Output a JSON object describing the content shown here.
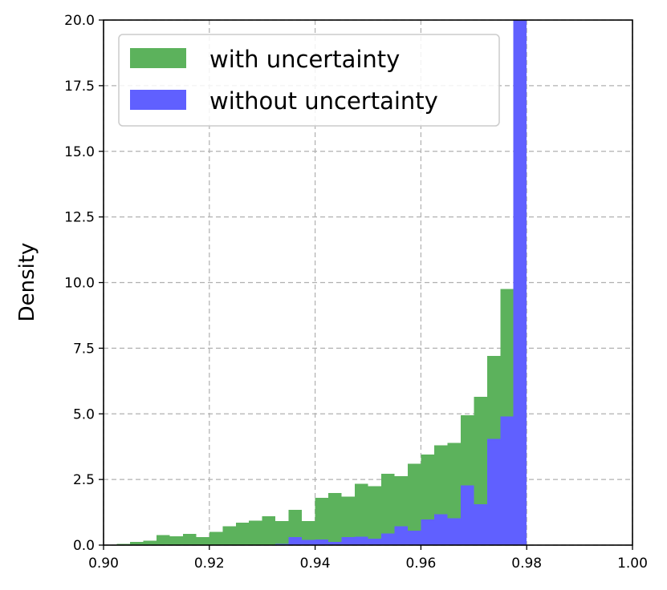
{
  "chart_data": {
    "type": "bar",
    "subtype": "histogram-overlay",
    "xlabel": "",
    "ylabel": "Density",
    "xlim": [
      0.9,
      1.0
    ],
    "ylim": [
      0,
      20
    ],
    "xticks": [
      0.9,
      0.92,
      0.94,
      0.96,
      0.98,
      1.0
    ],
    "xtick_labels": [
      "0.90",
      "0.92",
      "0.94",
      "0.96",
      "0.98",
      "1.00"
    ],
    "yticks": [
      0,
      2.5,
      5,
      7.5,
      10,
      12.5,
      15,
      17.5,
      20
    ],
    "ytick_labels": [
      "0.0",
      "2.5",
      "5.0",
      "7.5",
      "10.0",
      "12.5",
      "15.0",
      "17.5",
      "20.0"
    ],
    "grid": true,
    "legend_position": "top-left",
    "series": [
      {
        "name": "with uncertainty",
        "color": "#5cb25c",
        "bin_width": 0.0025,
        "bin_start": 0.9025,
        "values": [
          0.05,
          0.12,
          0.17,
          0.38,
          0.33,
          0.43,
          0.3,
          0.5,
          0.72,
          0.85,
          0.93,
          1.1,
          0.92,
          1.35,
          0.92,
          1.8,
          1.98,
          1.85,
          2.33,
          2.25,
          2.72,
          2.62,
          3.1,
          3.45,
          3.8,
          3.9,
          4.95,
          5.65,
          7.2,
          9.75,
          20.0
        ]
      },
      {
        "name": "without uncertainty",
        "color": "#6060ff",
        "bin_width": 0.0025,
        "bin_start": 0.9025,
        "values": [
          0,
          0,
          0,
          0,
          0,
          0,
          0,
          0,
          0,
          0,
          0,
          0,
          0.05,
          0.3,
          0.2,
          0.22,
          0.12,
          0.3,
          0.32,
          0.25,
          0.45,
          0.72,
          0.55,
          0.98,
          1.18,
          1.02,
          2.28,
          1.55,
          4.05,
          4.9,
          20.0
        ]
      }
    ]
  }
}
